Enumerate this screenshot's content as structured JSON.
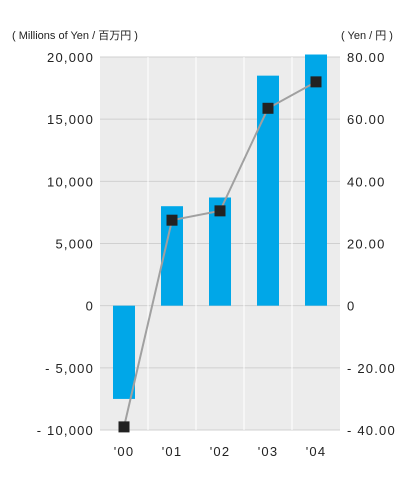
{
  "chart_data": {
    "type": "bar+line",
    "categories": [
      "'00",
      "'01",
      "'02",
      "'03",
      "'04"
    ],
    "series": [
      {
        "axis": "left",
        "kind": "bar",
        "color": "#00a7e8",
        "values": [
          -7500,
          8000,
          8700,
          18500,
          20200
        ]
      },
      {
        "axis": "right",
        "kind": "line",
        "color": "#a0a0a0",
        "marker_color": "#222222",
        "values": [
          -39.0,
          27.5,
          30.5,
          63.5,
          72.0
        ]
      }
    ],
    "left_axis": {
      "unit_label": "( Millions of Yen / 百万円 )",
      "ylim": [
        -10000,
        20000
      ],
      "tick_values": [
        20000,
        15000,
        10000,
        5000,
        0,
        -5000,
        -10000
      ],
      "tick_labels": [
        "20,000",
        "15,000",
        "10,000",
        "5,000",
        "0",
        "- 5,000",
        "- 10,000"
      ]
    },
    "right_axis": {
      "unit_label": "( Yen / 円 )",
      "ylim": [
        -40,
        80
      ],
      "tick_values": [
        80,
        60,
        40,
        20,
        0,
        -20,
        -40
      ],
      "tick_labels": [
        "80.00",
        "60.00",
        "40.00",
        "20.00",
        "0",
        "- 20.00",
        "- 40.00"
      ]
    },
    "grid": true,
    "grid_color": "#d0d0d0",
    "plot_background": "#ececec"
  }
}
